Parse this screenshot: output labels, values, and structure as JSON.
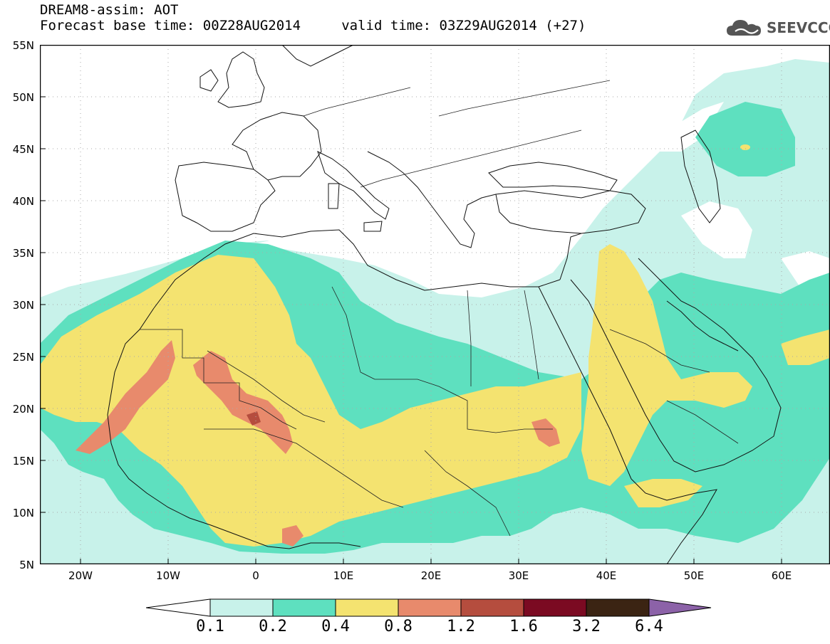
{
  "header": {
    "title_line1": "DREAM8-assim: AOT",
    "title_line2": "Forecast base time: 00Z28AUG2014     valid time: 03Z29AUG2014 (+27)",
    "logo_text": "SEEVCCC"
  },
  "map": {
    "lat_labels": [
      "55N",
      "50N",
      "45N",
      "40N",
      "35N",
      "30N",
      "25N",
      "20N",
      "15N",
      "10N",
      "5N"
    ],
    "lon_labels": [
      "20W",
      "10W",
      "0",
      "10E",
      "20E",
      "30E",
      "40E",
      "50E",
      "60E"
    ]
  },
  "legend": {
    "levels": [
      "0.1",
      "0.2",
      "0.4",
      "0.8",
      "1.2",
      "1.6",
      "3.2",
      "6.4"
    ],
    "colors": [
      "#c8f2ea",
      "#5ee0bf",
      "#f4e370",
      "#e88a6c",
      "#b54d3e",
      "#7b0a22",
      "#3b2413",
      "#8c62a8"
    ]
  },
  "colors": {
    "level_0_1": "#c8f2ea",
    "level_0_2": "#5ee0bf",
    "level_0_4": "#f4e370",
    "level_0_8": "#e88a6c",
    "level_1_2": "#b54d3e"
  }
}
